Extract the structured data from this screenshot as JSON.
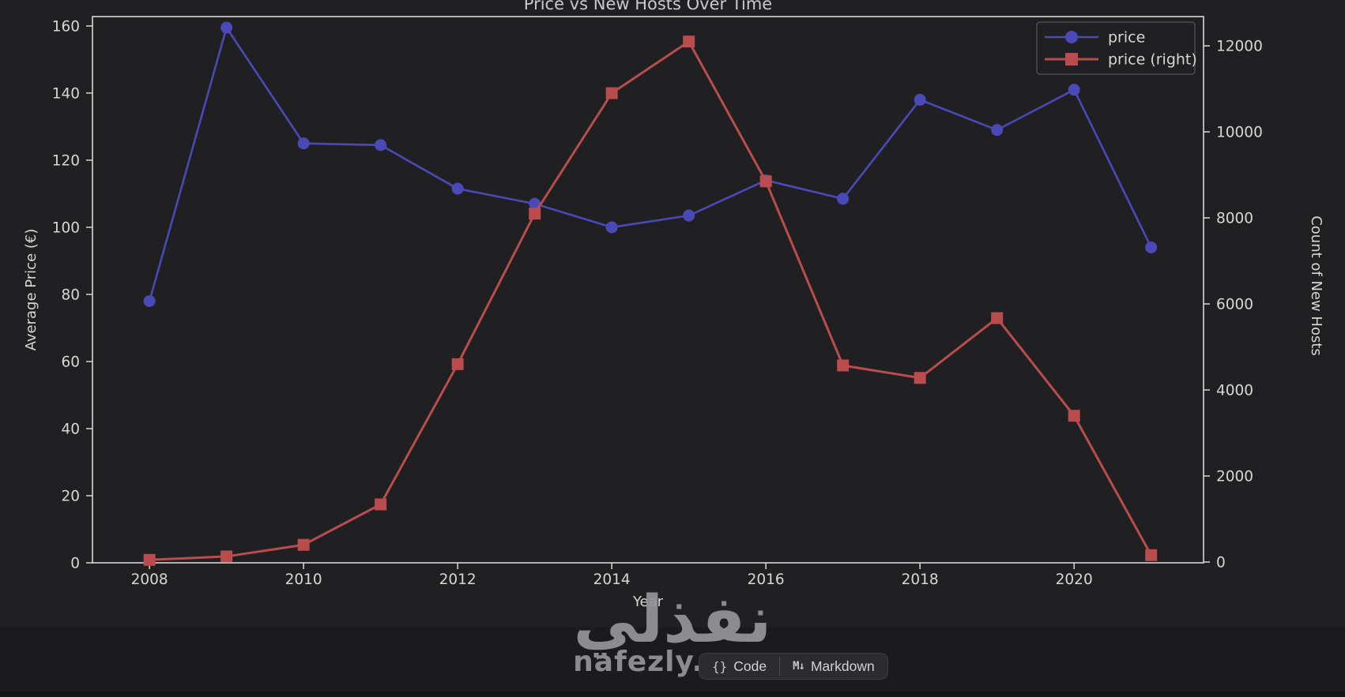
{
  "chart_data": {
    "type": "line",
    "title": "Price vs New Hosts Over Time",
    "xlabel": "Year",
    "ylabel_left": "Average Price (€)",
    "ylabel_right": "Count of New Hosts",
    "x": [
      2008,
      2009,
      2010,
      2011,
      2012,
      2013,
      2014,
      2015,
      2016,
      2017,
      2018,
      2019,
      2020,
      2021
    ],
    "series": [
      {
        "id": "price",
        "name": "price",
        "axis": "left",
        "color": "#4b48b8",
        "marker": "circle",
        "marker_size": 7.5,
        "line_width": 2.6,
        "values": [
          78,
          159.5,
          125,
          124.5,
          111.5,
          107,
          100,
          103.5,
          114,
          108.5,
          138,
          129,
          141,
          94
        ]
      },
      {
        "id": "price-right",
        "name": "price (right)",
        "axis": "right",
        "color": "#b94c4c",
        "marker": "square",
        "marker_size": 15,
        "line_width": 3,
        "values": [
          50,
          130,
          400,
          1340,
          4600,
          8100,
          10900,
          12100,
          8850,
          4570,
          4280,
          5670,
          3400,
          160
        ]
      }
    ],
    "x_ticks": [
      2008,
      2010,
      2012,
      2014,
      2016,
      2018,
      2020
    ],
    "y_left_ticks": [
      0,
      20,
      40,
      60,
      80,
      100,
      120,
      140,
      160
    ],
    "y_right_ticks": [
      0,
      2000,
      4000,
      6000,
      8000,
      10000,
      12000
    ],
    "xlim": [
      2007.26,
      2021.68
    ],
    "ylim_left": [
      0,
      162.8
    ],
    "ylim_right": [
      -18,
      12680
    ],
    "grid": false,
    "legend_position": "upper right",
    "legend_labels": [
      "price",
      "price (right)"
    ]
  },
  "colors": {
    "figure_bg": "#202023",
    "page_bg": "#1b1b1d",
    "spine": "#d8d8d8",
    "tick_label": "#d6d6d6",
    "title": "#c9c9cb",
    "legend_border": "#545457",
    "legend_bg": "#202023",
    "blue_series": "#4b48b8",
    "red_series": "#b94c4c"
  },
  "ui": {
    "watermark": {
      "arabic": "نفذلي",
      "domain": "nafezly.com"
    },
    "toolbar": {
      "code_icon": "{}",
      "code_label": "Code",
      "markdown_icon": "M↓",
      "markdown_label": "Markdown"
    }
  }
}
